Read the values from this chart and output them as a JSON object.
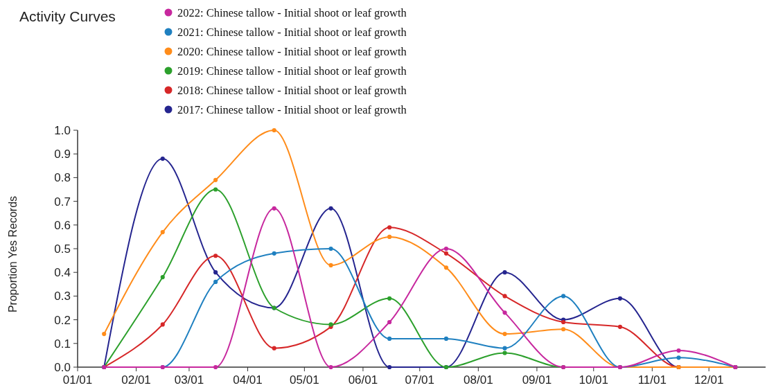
{
  "chart_data": {
    "type": "line",
    "title": "Activity Curves",
    "ylabel": "Proportion Yes Records",
    "x": [
      "--01-15",
      "--02-15",
      "--03-15",
      "--04-15",
      "--05-15",
      "--06-15",
      "--07-15",
      "--08-15",
      "--09-15",
      "--10-15",
      "--11-15",
      "--12-15"
    ],
    "xlim": [
      "--01-01",
      "--12-31"
    ],
    "xticks": [
      {
        "value": "--01-01",
        "label": "01/01"
      },
      {
        "value": "--02-01",
        "label": "02/01"
      },
      {
        "value": "--03-01",
        "label": "03/01"
      },
      {
        "value": "--04-01",
        "label": "04/01"
      },
      {
        "value": "--05-01",
        "label": "05/01"
      },
      {
        "value": "--06-01",
        "label": "06/01"
      },
      {
        "value": "--07-01",
        "label": "07/01"
      },
      {
        "value": "--08-01",
        "label": "08/01"
      },
      {
        "value": "--09-01",
        "label": "09/01"
      },
      {
        "value": "--10-01",
        "label": "10/01"
      },
      {
        "value": "--11-01",
        "label": "11/01"
      },
      {
        "value": "--12-01",
        "label": "12/01"
      }
    ],
    "ylim": [
      0,
      1
    ],
    "yticks": [
      {
        "value": 0,
        "label": "0.0"
      },
      {
        "value": 0.1,
        "label": "0.1"
      },
      {
        "value": 0.2,
        "label": "0.2"
      },
      {
        "value": 0.3,
        "label": "0.3"
      },
      {
        "value": 0.4,
        "label": "0.4"
      },
      {
        "value": 0.5,
        "label": "0.5"
      },
      {
        "value": 0.6,
        "label": "0.6"
      },
      {
        "value": 0.7,
        "label": "0.7"
      },
      {
        "value": 0.8,
        "label": "0.8"
      },
      {
        "value": 0.9,
        "label": "0.9"
      },
      {
        "value": 1,
        "label": "1.0"
      }
    ],
    "grid": false,
    "legend": "top",
    "marker": "circle",
    "line_style": "solid",
    "series": [
      {
        "name": "2022: Chinese tallow - Initial shoot or leaf growth",
        "color": "#c7289e",
        "values": [
          0,
          0,
          0,
          0.67,
          0,
          0.19,
          0.5,
          0.23,
          0,
          0,
          0.07,
          0
        ]
      },
      {
        "name": "2021: Chinese tallow - Initial shoot or leaf growth",
        "color": "#1f80c0",
        "values": [
          0,
          0,
          0.36,
          0.48,
          0.5,
          0.12,
          0.12,
          0.08,
          0.3,
          0,
          0.04,
          0
        ]
      },
      {
        "name": "2020: Chinese tallow - Initial shoot or leaf growth",
        "color": "#ff8c1a",
        "values": [
          0.14,
          0.57,
          0.79,
          1.0,
          0.43,
          0.55,
          0.42,
          0.14,
          0.16,
          0,
          0,
          0
        ]
      },
      {
        "name": "2019: Chinese tallow - Initial shoot or leaf growth",
        "color": "#2ca02c",
        "values": [
          0,
          0.38,
          0.75,
          0.25,
          0.18,
          0.29,
          0,
          0.06,
          0,
          0,
          null,
          null
        ]
      },
      {
        "name": "2018: Chinese tallow - Initial shoot or leaf growth",
        "color": "#d62728",
        "values": [
          0,
          0.18,
          0.47,
          0.08,
          0.17,
          0.59,
          0.48,
          0.3,
          0.19,
          0.17,
          0,
          0
        ]
      },
      {
        "name": "2017: Chinese tallow - Initial shoot or leaf growth",
        "color": "#25258f",
        "values": [
          0,
          0.88,
          0.4,
          0.25,
          0.67,
          0,
          0,
          0.4,
          0.2,
          0.29,
          0,
          0
        ]
      }
    ]
  }
}
